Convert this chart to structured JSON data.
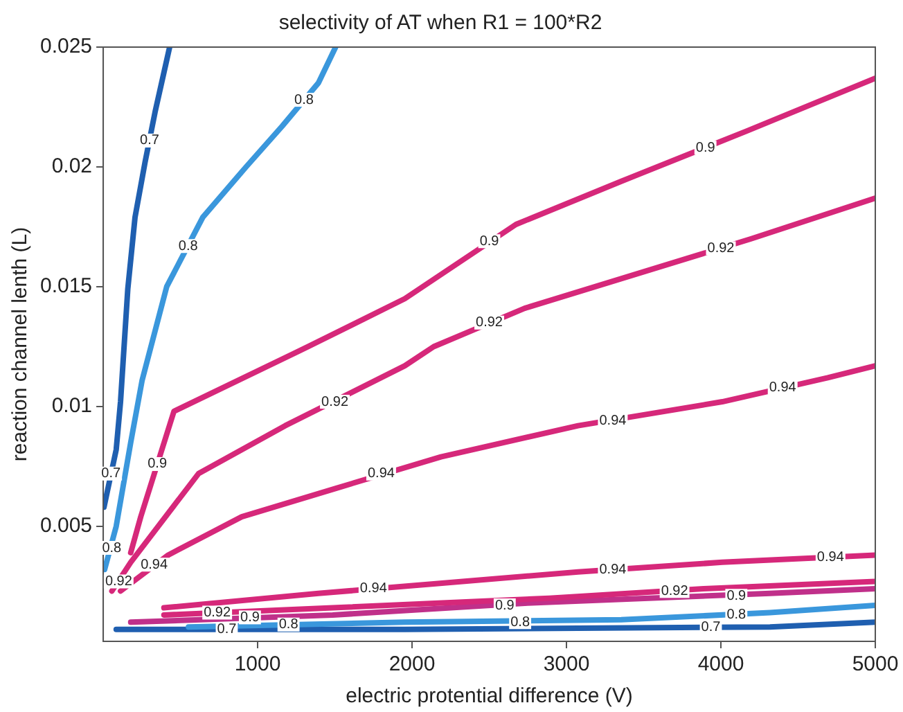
{
  "chart_data": {
    "type": "line",
    "title": "selectivity of AT when R1 = 100*R2",
    "xlabel": "electric protential difference (V)",
    "ylabel": "reaction channel lenth (L)",
    "xlim": [
      0,
      5000
    ],
    "xticks": [
      1000,
      2000,
      3000,
      4000,
      5000
    ],
    "ylim": [
      0.0002,
      0.025
    ],
    "yticks": [
      0.005,
      0.01,
      0.015,
      0.02,
      0.025
    ],
    "grid": false,
    "legend": false,
    "marker": "none",
    "line_style": "solid",
    "series": [
      {
        "color": "#1f5fb0",
        "x": [
          5,
          84,
          112,
          159,
          206,
          271,
          336,
          430
        ],
        "values": [
          0.0058,
          0.0082,
          0.0102,
          0.0149,
          0.0179,
          0.0202,
          0.0223,
          0.025
        ]
      },
      {
        "color": "#3a97dc",
        "x": [
          9,
          84,
          178,
          252,
          411,
          645,
          925,
          1159,
          1393,
          1505
        ],
        "values": [
          0.0032,
          0.005,
          0.0085,
          0.0111,
          0.015,
          0.0179,
          0.02,
          0.0217,
          0.0235,
          0.025
        ]
      },
      {
        "color": "#d6287a",
        "x": [
          178,
          243,
          458,
          1327,
          1953,
          2673,
          3355,
          4168,
          5000
        ],
        "values": [
          0.0039,
          0.0054,
          0.0098,
          0.0125,
          0.0145,
          0.0176,
          0.0194,
          0.0215,
          0.0237
        ]
      },
      {
        "color": "#d6287a",
        "x": [
          56,
          178,
          617,
          1178,
          1953,
          2140,
          2729,
          4196,
          5000
        ],
        "values": [
          0.0023,
          0.0035,
          0.0072,
          0.0092,
          0.0117,
          0.0125,
          0.0141,
          0.017,
          0.0187
        ]
      },
      {
        "color": "#d6287a",
        "x": [
          112,
          420,
          897,
          1514,
          2187,
          3075,
          4009,
          4692,
          5000
        ],
        "values": [
          0.0023,
          0.0038,
          0.0054,
          0.0066,
          0.0079,
          0.0092,
          0.0102,
          0.0112,
          0.0117
        ]
      },
      {
        "color": "#d6287a",
        "x": [
          393,
          1393,
          2140,
          3075,
          4009,
          5000
        ],
        "values": [
          0.0016,
          0.0022,
          0.0026,
          0.0031,
          0.0035,
          0.0038
        ]
      },
      {
        "color": "#d6287a",
        "x": [
          393,
          1486,
          2888,
          3888,
          5000
        ],
        "values": [
          0.0013,
          0.0016,
          0.002,
          0.0024,
          0.0027
        ]
      },
      {
        "color": "#c0308a",
        "x": [
          178,
          1486,
          2748,
          4318,
          5000
        ],
        "values": [
          0.001,
          0.0013,
          0.0018,
          0.0022,
          0.0024
        ]
      },
      {
        "color": "#3a97dc",
        "x": [
          552,
          1953,
          3355,
          4318,
          5000
        ],
        "values": [
          0.0008,
          0.001,
          0.0011,
          0.0014,
          0.0017
        ]
      },
      {
        "color": "#1f5fb0",
        "x": [
          84,
          1953,
          4318,
          5000
        ],
        "values": [
          0.0007,
          0.0007,
          0.0008,
          0.001
        ]
      }
    ],
    "annotations": [
      {
        "text": "0.7",
        "x": 300,
        "y": 0.0211
      },
      {
        "text": "0.7",
        "x": 50,
        "y": 0.0072
      },
      {
        "text": "0.8",
        "x": 1300,
        "y": 0.0228
      },
      {
        "text": "0.8",
        "x": 550,
        "y": 0.0167
      },
      {
        "text": "0.8",
        "x": 55,
        "y": 0.0041
      },
      {
        "text": "0.9",
        "x": 2500,
        "y": 0.0169
      },
      {
        "text": "0.9",
        "x": 3900,
        "y": 0.0208
      },
      {
        "text": "0.9",
        "x": 350,
        "y": 0.0076
      },
      {
        "text": "0.92",
        "x": 2500,
        "y": 0.0135
      },
      {
        "text": "0.92",
        "x": 4000,
        "y": 0.0166
      },
      {
        "text": "0.92",
        "x": 1500,
        "y": 0.0102
      },
      {
        "text": "0.94",
        "x": 1800,
        "y": 0.0072
      },
      {
        "text": "0.94",
        "x": 3300,
        "y": 0.0094
      },
      {
        "text": "0.94",
        "x": 4400,
        "y": 0.0108
      },
      {
        "text": "0.94",
        "x": 1750,
        "y": 0.0024
      },
      {
        "text": "0.94",
        "x": 3300,
        "y": 0.0032
      },
      {
        "text": "0.94",
        "x": 4710,
        "y": 0.0037
      },
      {
        "text": "0.92",
        "x": 100,
        "y": 0.0027
      },
      {
        "text": "0.94",
        "x": 330,
        "y": 0.0034
      },
      {
        "text": "0.92",
        "x": 738,
        "y": 0.0014
      },
      {
        "text": "0.92",
        "x": 3700,
        "y": 0.0023
      },
      {
        "text": "0.9",
        "x": 950,
        "y": 0.0012
      },
      {
        "text": "0.9",
        "x": 2600,
        "y": 0.0017
      },
      {
        "text": "0.9",
        "x": 4100,
        "y": 0.0021
      },
      {
        "text": "0.8",
        "x": 1200,
        "y": 0.0009
      },
      {
        "text": "0.8",
        "x": 2700,
        "y": 0.001
      },
      {
        "text": "0.8",
        "x": 4100,
        "y": 0.0013
      },
      {
        "text": "0.7",
        "x": 800,
        "y": 0.0007
      },
      {
        "text": "0.7",
        "x": 3935,
        "y": 0.0008
      }
    ]
  }
}
